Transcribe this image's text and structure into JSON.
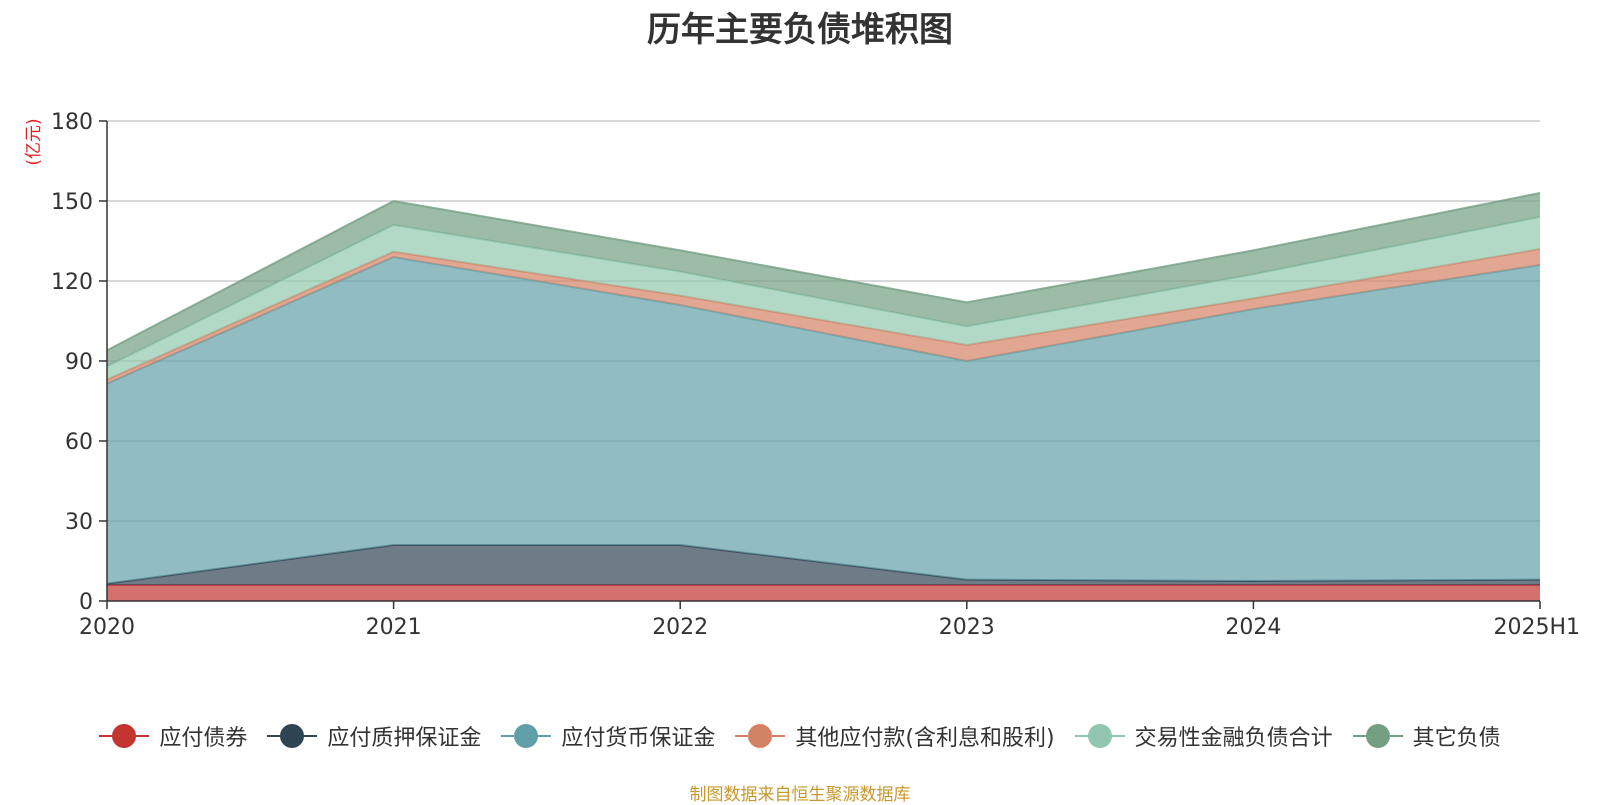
{
  "chart_data": {
    "type": "area",
    "title": "历年主要负债堆积图",
    "unit_label": "(亿元)",
    "stacked": true,
    "categories": [
      "2020",
      "2021",
      "2022",
      "2023",
      "2024",
      "2025H1"
    ],
    "ylim": [
      0,
      180
    ],
    "yticks": [
      0,
      30,
      60,
      90,
      120,
      150,
      180
    ],
    "grid": true,
    "legend_position": "bottom",
    "series": [
      {
        "name": "应付债券",
        "color": "#c23531",
        "values": [
          6,
          6,
          6,
          6,
          6,
          6
        ]
      },
      {
        "name": "应付质押保证金",
        "color": "#2f4554",
        "values": [
          0.5,
          15,
          15,
          2,
          1.5,
          2
        ]
      },
      {
        "name": "应付货币保证金",
        "color": "#61a0a8",
        "values": [
          75,
          108,
          90,
          82,
          102,
          118
        ]
      },
      {
        "name": "其他应付款(含利息和股利)",
        "color": "#d48265",
        "values": [
          1.5,
          2,
          3.5,
          6,
          4,
          6
        ]
      },
      {
        "name": "交易性金融负债合计",
        "color": "#91c7ae",
        "values": [
          5,
          10,
          9,
          7,
          9,
          12
        ]
      },
      {
        "name": "其它负债",
        "color": "#749f83",
        "values": [
          6,
          9,
          8,
          9,
          9,
          9
        ]
      }
    ]
  },
  "footer": {
    "source": "制图数据来自恒生聚源数据库"
  }
}
